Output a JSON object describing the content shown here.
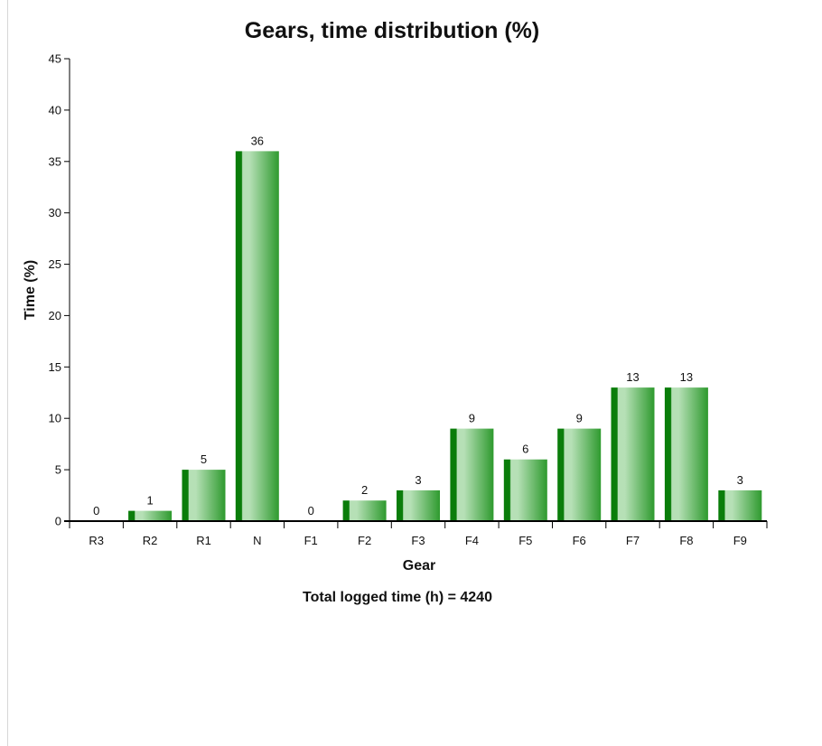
{
  "chart_data": {
    "type": "bar",
    "title": "Gears, time distribution (%)",
    "xlabel": "Gear",
    "ylabel": "Time (%)",
    "categories": [
      "R3",
      "R2",
      "R1",
      "N",
      "F1",
      "F2",
      "F3",
      "F4",
      "F5",
      "F6",
      "F7",
      "F8",
      "F9"
    ],
    "values": [
      0,
      1,
      5,
      36,
      0,
      2,
      3,
      9,
      6,
      9,
      13,
      13,
      3
    ],
    "data_labels": [
      "0",
      "1",
      "5",
      "36",
      "0",
      "2",
      "3",
      "9",
      "6",
      "9",
      "13",
      "13",
      "3"
    ],
    "ylim": [
      0,
      45
    ],
    "yticks": [
      0,
      5,
      10,
      15,
      20,
      25,
      30,
      35,
      40,
      45
    ],
    "ytick_labels": [
      "0",
      "5",
      "10",
      "15",
      "20",
      "25",
      "30",
      "35",
      "40",
      "45"
    ],
    "grid": false,
    "legend": "none",
    "footnote": "Total logged time (h) = 4240",
    "colors": {
      "bar_dark": "#0a7d0a",
      "bar_mid": "#2e9a2e",
      "bar_light": "#b6e0b6",
      "axis": "#000000"
    }
  }
}
